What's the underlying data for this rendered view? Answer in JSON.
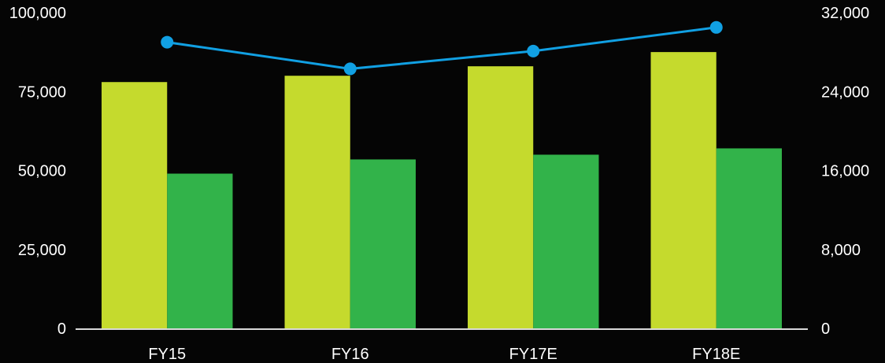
{
  "chart_data": {
    "type": "bar",
    "title": "",
    "xlabel": "",
    "ylabel": "",
    "ylabel_right": "",
    "categories": [
      "FY15",
      "FY16",
      "FY17E",
      "FY18E"
    ],
    "ylim": [
      0,
      100000
    ],
    "ylim_right": [
      0,
      32000
    ],
    "yticks": [
      0,
      25000,
      50000,
      75000,
      100000
    ],
    "yticks_right": [
      0,
      8000,
      16000,
      24000,
      32000
    ],
    "ytick_labels": [
      "0",
      "25,000",
      "50,000",
      "75,000",
      "100,000"
    ],
    "ytick_labels_right": [
      "0",
      "8,000",
      "16,000",
      "24,000",
      "32,000"
    ],
    "grid": false,
    "legend": "none",
    "series": [
      {
        "type": "bar",
        "axis": "left",
        "color": "#c5da2d",
        "values": [
          78000,
          80000,
          83000,
          87500
        ]
      },
      {
        "type": "bar",
        "axis": "left",
        "color": "#32b34a",
        "values": [
          49000,
          53500,
          55000,
          57000
        ]
      },
      {
        "type": "line",
        "axis": "right",
        "color": "#11a0e3",
        "values": [
          29000,
          26300,
          28100,
          30500
        ]
      }
    ],
    "colors": {
      "background": "#050505",
      "axis": "#d9d9d9",
      "text": "#ffffff"
    }
  }
}
